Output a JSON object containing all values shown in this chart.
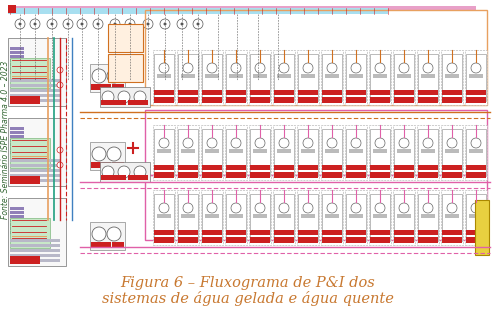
{
  "title_line1": "Figura 6 – Fluxograma de P&I dos",
  "title_line2": "sistemas de água gelada e água quente",
  "title_color": "#c87830",
  "title_fontsize": 10.5,
  "background_color": "#ffffff",
  "source_text": "Fonte: Seminário ISPE Pharma 4.0 – 2023",
  "source_color": "#336633",
  "source_fontsize": 5.5,
  "cyan_color": "#a8dff0",
  "pink_color1": "#e8a0c8",
  "pink_color2": "#e060a8",
  "orange_color": "#e8a060",
  "orange_dark": "#d07020",
  "red_color": "#cc2020",
  "green_color": "#60aa60",
  "purple_color": "#9070b0",
  "gray_border": "#aaaaaa",
  "light_green_bg": "#d0e8d0",
  "light_orange_bg": "#fff0e0",
  "yellow_color": "#e8d040",
  "dark_gray": "#555555",
  "blue_line": "#4080c0",
  "teal_line": "#20a080"
}
